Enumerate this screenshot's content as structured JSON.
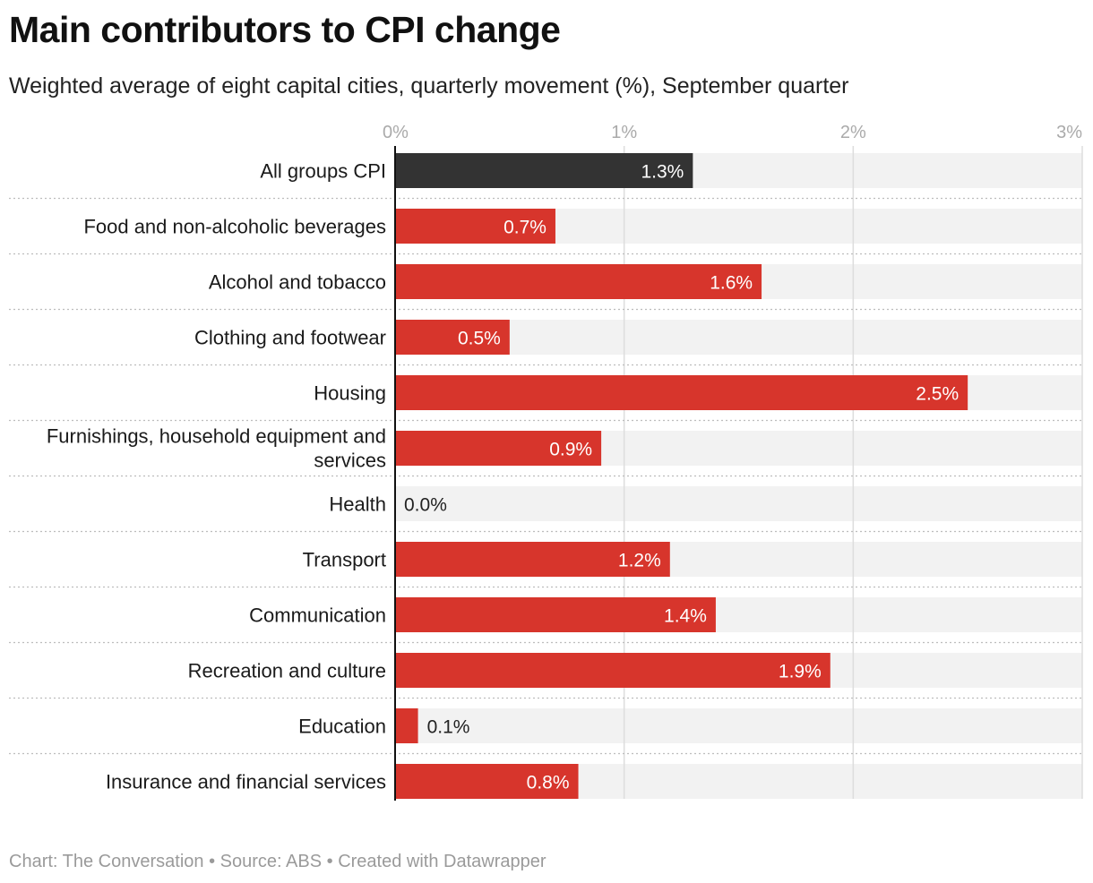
{
  "title": "Main contributors to CPI change",
  "subtitle": "Weighted average of eight capital cities, quarterly movement (%), September quarter",
  "footer": {
    "credit": "Chart: The Conversation",
    "separator": " • ",
    "source": "Source: ABS",
    "tool": "Created with Datawrapper"
  },
  "colors": {
    "highlight_bar": "#333333",
    "bar": "#d7352c",
    "track": "#f2f2f2",
    "grid": "#dddddd",
    "tick_text": "#aaaaaa",
    "label_in_bar": "#ffffff",
    "label_outside": "#222222"
  },
  "chart_data": {
    "type": "bar",
    "orientation": "horizontal",
    "categories": [
      "All groups CPI",
      "Food and non-alcoholic beverages",
      "Alcohol and tobacco",
      "Clothing and footwear",
      "Housing",
      "Furnishings, household equipment and services",
      "Health",
      "Transport",
      "Communication",
      "Recreation and culture",
      "Education",
      "Insurance and financial services"
    ],
    "values": [
      1.3,
      0.7,
      1.6,
      0.5,
      2.5,
      0.9,
      0.0,
      1.2,
      1.4,
      1.9,
      0.1,
      0.8
    ],
    "value_labels": [
      "1.3%",
      "0.7%",
      "1.6%",
      "0.5%",
      "2.5%",
      "0.9%",
      "0.0%",
      "1.2%",
      "1.4%",
      "1.9%",
      "0.1%",
      "0.8%"
    ],
    "highlighted_category": "All groups CPI",
    "xlim": [
      0,
      3
    ],
    "x_ticks": [
      0,
      1,
      2,
      3
    ],
    "x_tick_labels": [
      "0%",
      "1%",
      "2%",
      "3%"
    ],
    "xlabel": "",
    "ylabel": "",
    "grid": true,
    "legend": false
  }
}
